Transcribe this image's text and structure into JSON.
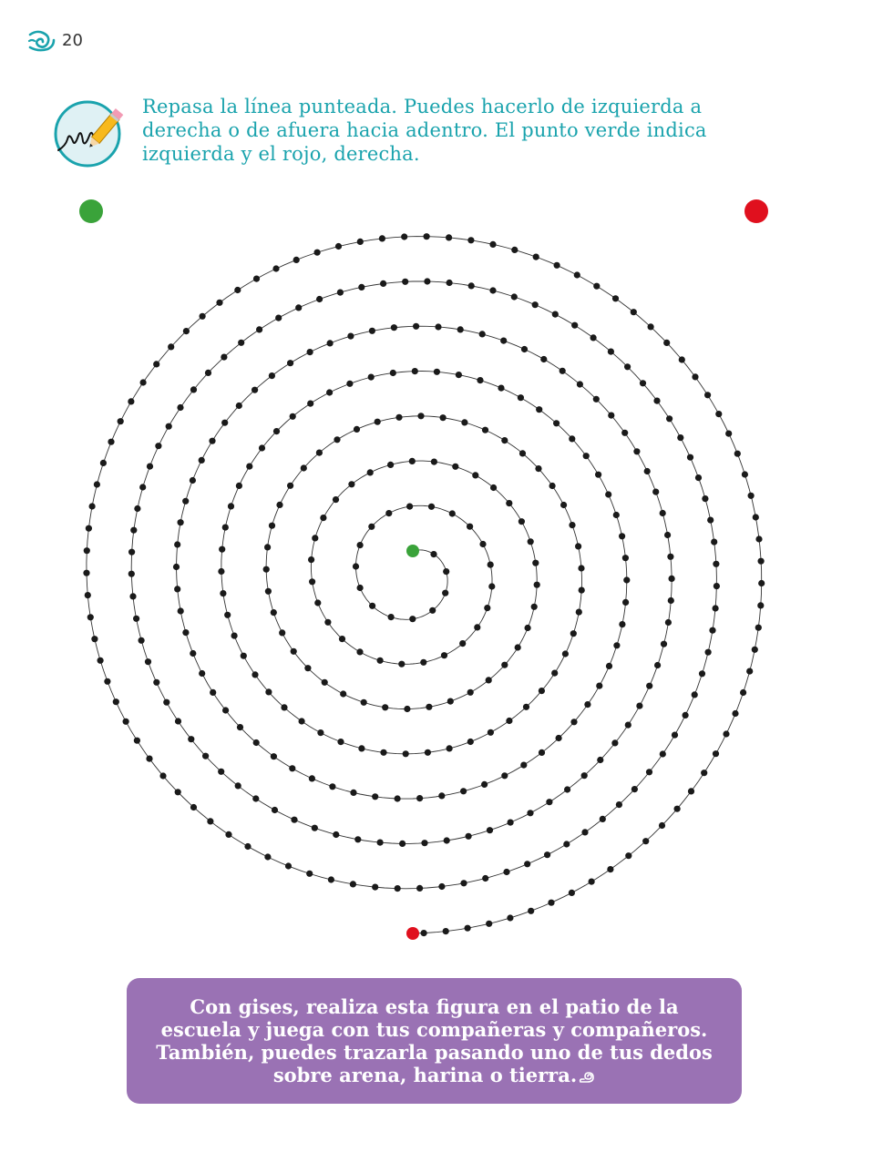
{
  "page": {
    "number": "20"
  },
  "instruction": {
    "text": "Repasa la línea punteada. Puedes hacerlo de izquierda a derecha o de afuera hacia adentro. El punto verde indica izquierda y el rojo, derecha.",
    "icon": "pencil-writing-icon"
  },
  "legend_dots": {
    "left_color": "#3aa33a",
    "right_color": "#e0101e"
  },
  "spiral": {
    "line_color": "#333333",
    "dot_color": "#1a1a1a",
    "start_color": "#3aa33a",
    "end_color": "#e0101e"
  },
  "callout": {
    "text": "Con gises, realiza esta figura en el patio de la escuela y juega con tus compañeras y compañeros. También, puedes trazarla pasando uno de tus dedos sobre arena, harina o tierra.",
    "background": "#9a72b4",
    "icon": "snail-spiral-icon"
  },
  "colors": {
    "accent": "#1aa3ad"
  }
}
